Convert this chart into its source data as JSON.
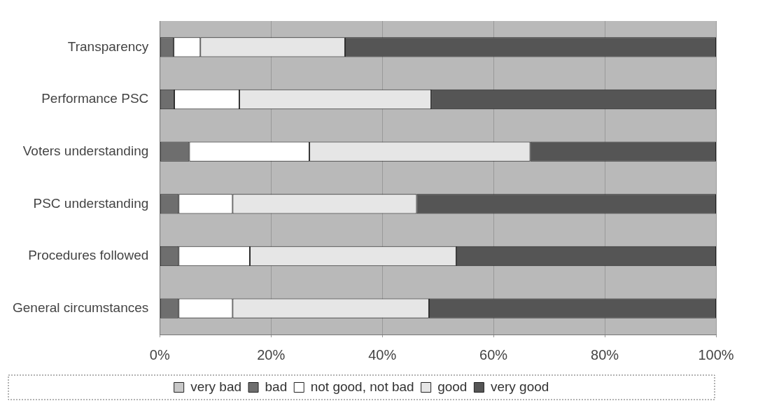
{
  "chart_data": {
    "type": "bar",
    "orientation": "horizontal",
    "stacked": true,
    "categories": [
      "Transparency",
      "Performance PSC",
      "Voters understanding",
      "PSC understanding",
      "Procedures followed",
      "General circumstances"
    ],
    "series": [
      {
        "name": "very bad",
        "color": "#c8c8c8",
        "values": [
          0,
          0,
          0,
          0,
          0,
          0
        ]
      },
      {
        "name": "bad",
        "color": "#6e6e6e",
        "values": [
          2.5,
          2.6,
          5.3,
          3.4,
          3.4,
          3.4
        ]
      },
      {
        "name": "not good, not bad",
        "color": "#ffffff",
        "values": [
          4.8,
          11.7,
          21.6,
          9.7,
          12.8,
          9.7
        ]
      },
      {
        "name": "good",
        "color": "#e6e6e6",
        "values": [
          26,
          34.5,
          39.7,
          33.1,
          37.1,
          35.3
        ]
      },
      {
        "name": "very good",
        "color": "#555555",
        "values": [
          66.7,
          51.2,
          33.4,
          53.8,
          46.7,
          51.6
        ]
      }
    ],
    "xlim": [
      0,
      100
    ],
    "xticks": [
      {
        "value": 0,
        "label": "0%"
      },
      {
        "value": 20,
        "label": "20%"
      },
      {
        "value": 40,
        "label": "40%"
      },
      {
        "value": 60,
        "label": "60%"
      },
      {
        "value": 80,
        "label": "80%"
      },
      {
        "value": 100,
        "label": "100%"
      }
    ],
    "grid": "x",
    "legend": "bottom"
  }
}
